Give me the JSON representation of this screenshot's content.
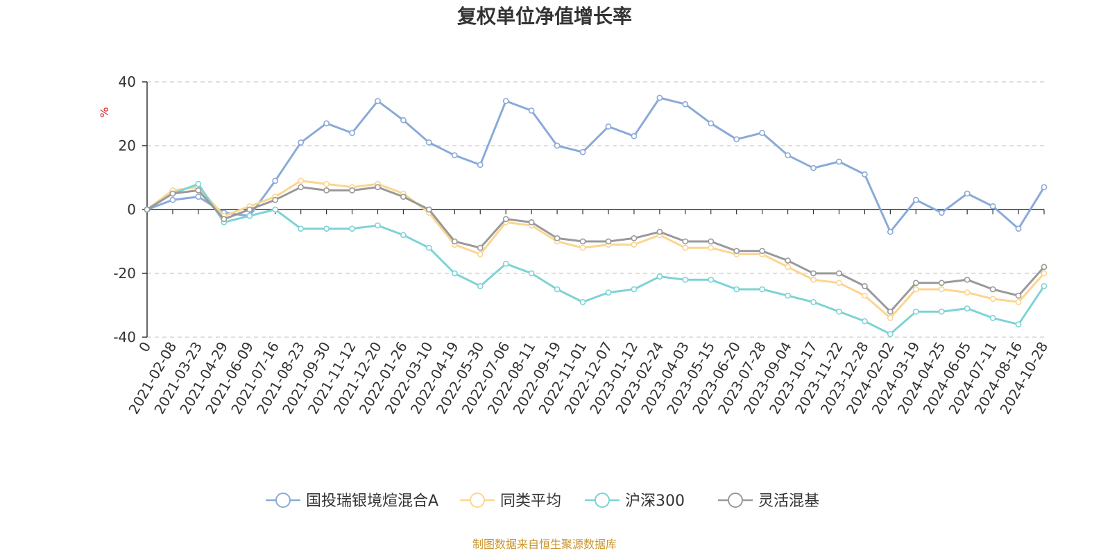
{
  "chart_data": {
    "type": "line",
    "title": "复权单位净值增长率",
    "ylabel": "%",
    "xlabel": "",
    "ylim": [
      -40,
      40
    ],
    "yticks": [
      40,
      20,
      0,
      -20,
      -40
    ],
    "grid": true,
    "legend_position": "bottom",
    "source_note": "制图数据来自恒生聚源数据库",
    "x": [
      "0",
      "2021-02-08",
      "2021-03-23",
      "2021-04-29",
      "2021-06-09",
      "2021-07-16",
      "2021-08-23",
      "2021-09-30",
      "2021-11-12",
      "2021-12-20",
      "2022-01-26",
      "2022-03-10",
      "2022-04-19",
      "2022-05-30",
      "2022-07-06",
      "2022-08-11",
      "2022-09-19",
      "2022-11-01",
      "2022-12-07",
      "2023-01-12",
      "2023-02-24",
      "2023-04-03",
      "2023-05-15",
      "2023-06-20",
      "2023-07-28",
      "2023-09-04",
      "2023-10-17",
      "2023-11-22",
      "2023-12-28",
      "2024-02-02",
      "2024-03-19",
      "2024-04-25",
      "2024-06-05",
      "2024-07-11",
      "2024-08-16",
      "2024-10-28"
    ],
    "series": [
      {
        "name": "国投瑞银境煊混合A",
        "color": "#8aaad8",
        "values": [
          0,
          3,
          4,
          -1,
          -2,
          9,
          21,
          27,
          24,
          34,
          28,
          21,
          17,
          14,
          34,
          31,
          20,
          18,
          26,
          23,
          35,
          33,
          27,
          22,
          24,
          17,
          13,
          15,
          11,
          -7,
          3,
          -1,
          5,
          1,
          -6,
          7
        ]
      },
      {
        "name": "同类平均",
        "color": "#fcd58f",
        "values": [
          0,
          6,
          7,
          -2,
          1,
          4,
          9,
          8,
          7,
          8,
          5,
          -1,
          -11,
          -14,
          -4,
          -5,
          -10,
          -12,
          -11,
          -11,
          -8,
          -12,
          -12,
          -14,
          -14,
          -18,
          -22,
          -23,
          -27,
          -34,
          -25,
          -25,
          -26,
          -28,
          -29,
          -20
        ]
      },
      {
        "name": "沪深300",
        "color": "#7dd3d6",
        "values": [
          0,
          5,
          8,
          -4,
          -2,
          0,
          -6,
          -6,
          -6,
          -5,
          -8,
          -12,
          -20,
          -24,
          -17,
          -20,
          -25,
          -29,
          -26,
          -25,
          -21,
          -22,
          -22,
          -25,
          -25,
          -27,
          -29,
          -32,
          -35,
          -39,
          -32,
          -32,
          -31,
          -34,
          -36,
          -24
        ]
      },
      {
        "name": "灵活混基",
        "color": "#999999",
        "values": [
          0,
          5,
          6,
          -3,
          0,
          3,
          7,
          6,
          6,
          7,
          4,
          0,
          -10,
          -12,
          -3,
          -4,
          -9,
          -10,
          -10,
          -9,
          -7,
          -10,
          -10,
          -13,
          -13,
          -16,
          -20,
          -20,
          -24,
          -32,
          -23,
          -23,
          -22,
          -25,
          -27,
          -18
        ]
      }
    ]
  }
}
